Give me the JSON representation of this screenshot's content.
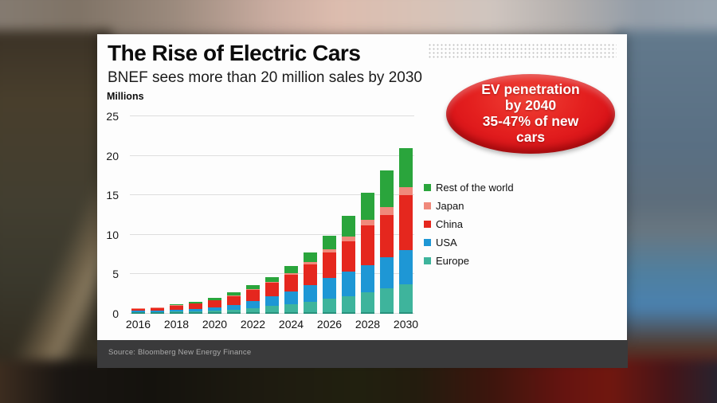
{
  "header": {
    "title": "The Rise of Electric Cars",
    "subtitle": "BNEF sees more than 20 million sales by 2030"
  },
  "badge": {
    "lines": [
      "EV penetration",
      "by 2040",
      "35-47% of new",
      "cars"
    ],
    "bg_color": "#e01b1e",
    "text_color": "#ffffff"
  },
  "footer": {
    "source": "Source: Bloomberg New Energy Finance"
  },
  "chart_data": {
    "type": "bar",
    "stacked": true,
    "title": "The Rise of Electric Cars",
    "subtitle": "BNEF sees more than 20 million sales by 2030",
    "ylabel": "Millions",
    "xlabel": "",
    "ylim": [
      0,
      25
    ],
    "yticks": [
      0,
      5,
      10,
      15,
      20,
      25
    ],
    "grid": true,
    "legend_position": "right",
    "categories": [
      "2016",
      "2017",
      "2018",
      "2019",
      "2020",
      "2021",
      "2022",
      "2023",
      "2024",
      "2025",
      "2026",
      "2027",
      "2028",
      "2029",
      "2030"
    ],
    "xticks_shown": [
      "2016",
      "2018",
      "2020",
      "2022",
      "2024",
      "2026",
      "2028",
      "2030"
    ],
    "series": [
      {
        "name": "Europe",
        "color": "#3eb49c",
        "values": [
          0.25,
          0.25,
          0.3,
          0.35,
          0.45,
          0.55,
          0.75,
          1.0,
          1.2,
          1.5,
          1.9,
          2.2,
          2.7,
          3.2,
          3.7
        ]
      },
      {
        "name": "USA",
        "color": "#1e97d5",
        "values": [
          0.15,
          0.18,
          0.22,
          0.28,
          0.38,
          0.6,
          0.9,
          1.2,
          1.6,
          2.1,
          2.6,
          3.1,
          3.5,
          4.0,
          4.4
        ]
      },
      {
        "name": "China",
        "color": "#e5271e",
        "values": [
          0.25,
          0.32,
          0.53,
          0.67,
          0.87,
          1.1,
          1.4,
          1.7,
          2.1,
          2.7,
          3.3,
          3.9,
          5.0,
          5.3,
          6.9
        ]
      },
      {
        "name": "Japan",
        "color": "#f0897b",
        "values": [
          0.03,
          0.03,
          0.05,
          0.05,
          0.05,
          0.08,
          0.1,
          0.15,
          0.2,
          0.3,
          0.4,
          0.6,
          0.7,
          1.0,
          1.0
        ]
      },
      {
        "name": "Rest of the world",
        "color": "#2aa53c",
        "values": [
          0.02,
          0.02,
          0.1,
          0.2,
          0.3,
          0.42,
          0.5,
          0.6,
          1.0,
          1.2,
          1.7,
          2.6,
          3.4,
          4.7,
          5.0
        ]
      }
    ],
    "legend_order": [
      "Rest of the world",
      "Japan",
      "China",
      "USA",
      "Europe"
    ],
    "totals": [
      0.7,
      0.8,
      1.2,
      1.55,
      2.05,
      2.75,
      3.65,
      4.65,
      6.1,
      7.8,
      9.9,
      12.4,
      15.3,
      18.2,
      21.0
    ]
  }
}
